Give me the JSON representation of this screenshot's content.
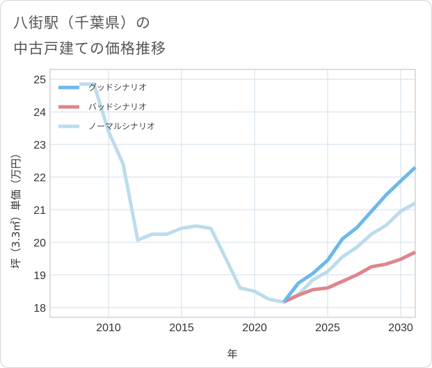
{
  "title_lines": [
    "八街駅（千葉県）の",
    "中古戸建ての価格推移"
  ],
  "chart_data": {
    "type": "line",
    "title": "八街駅（千葉県）の中古戸建ての価格推移",
    "xlabel": "年",
    "ylabel": "坪（3.3㎡）単価（万円）",
    "xlim": [
      2006,
      2031
    ],
    "ylim": [
      17.7,
      25.3
    ],
    "xticks": [
      2010,
      2015,
      2020,
      2025,
      2030
    ],
    "yticks": [
      18,
      19,
      20,
      21,
      22,
      23,
      24,
      25
    ],
    "legend_position": "top-left",
    "series": [
      {
        "name": "グッドシナリオ",
        "color": "#6cb8ec",
        "x": [
          2022,
          2023,
          2024,
          2025,
          2026,
          2027,
          2028,
          2029,
          2030,
          2031
        ],
        "y": [
          18.17,
          18.75,
          19.05,
          19.45,
          20.1,
          20.45,
          20.95,
          21.45,
          21.88,
          22.3
        ]
      },
      {
        "name": "バッドシナリオ",
        "color": "#e0848c",
        "x": [
          2022,
          2023,
          2024,
          2025,
          2026,
          2027,
          2028,
          2029,
          2030,
          2031
        ],
        "y": [
          18.17,
          18.38,
          18.55,
          18.6,
          18.8,
          19.0,
          19.25,
          19.33,
          19.48,
          19.7
        ]
      },
      {
        "name": "ノーマルシナリオ",
        "color": "#bcdcec",
        "x": [
          2008,
          2009,
          2010,
          2011,
          2012,
          2013,
          2014,
          2015,
          2016,
          2017,
          2018,
          2019,
          2020,
          2021,
          2022,
          2023,
          2024,
          2025,
          2026,
          2027,
          2028,
          2029,
          2030,
          2031
        ],
        "y": [
          24.85,
          24.85,
          23.4,
          22.4,
          20.07,
          20.25,
          20.25,
          20.43,
          20.5,
          20.43,
          19.53,
          18.6,
          18.5,
          18.25,
          18.17,
          18.4,
          18.85,
          19.1,
          19.55,
          19.85,
          20.25,
          20.52,
          20.95,
          21.2
        ]
      }
    ]
  }
}
